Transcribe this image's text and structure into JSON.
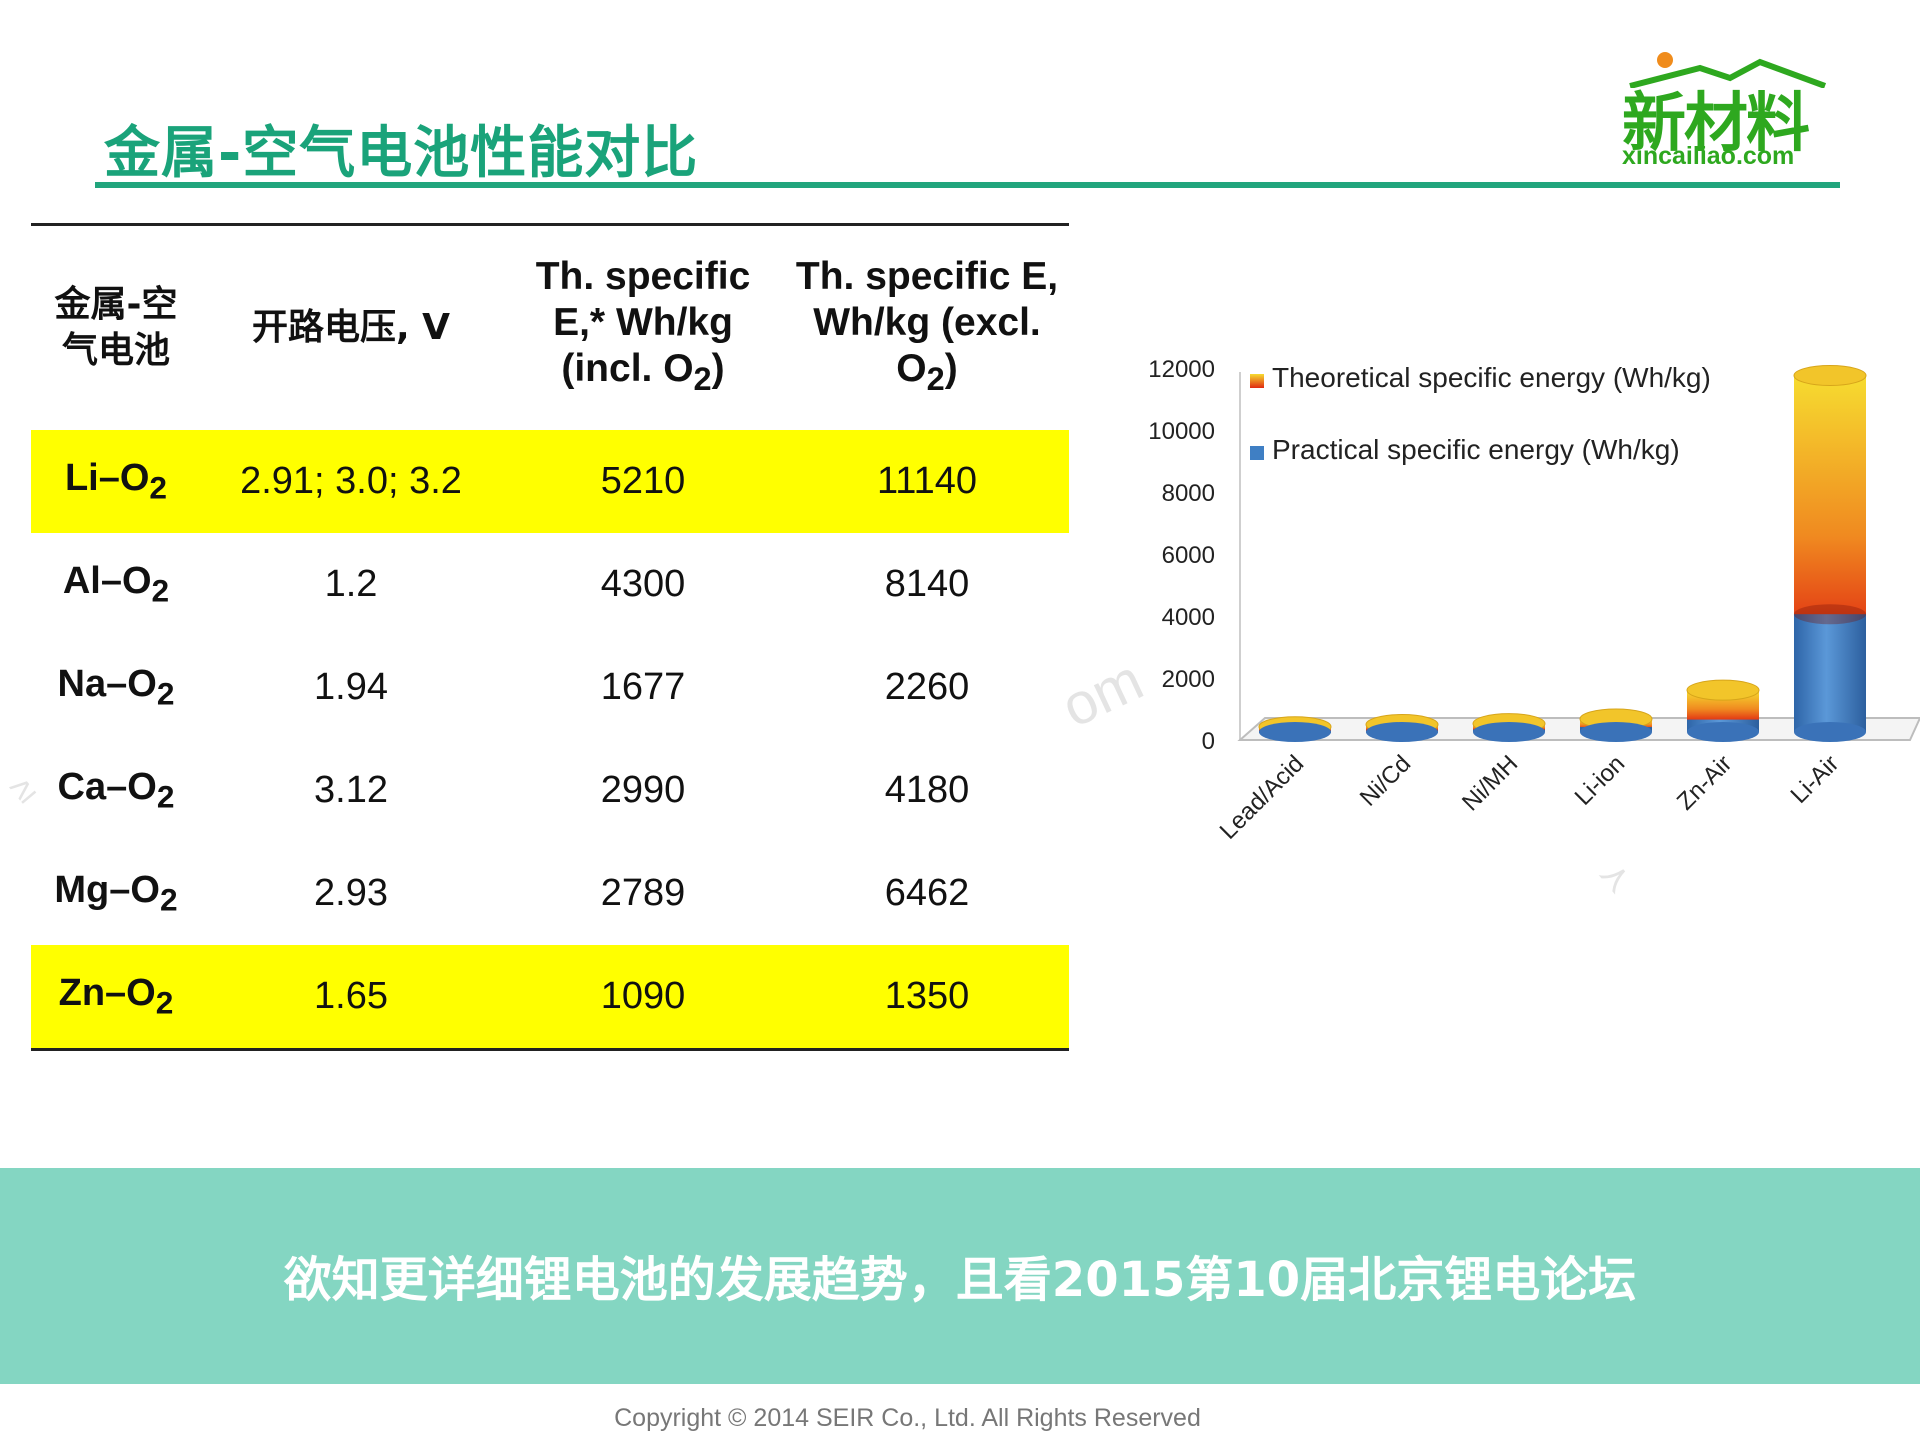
{
  "slide": {
    "title": "金属-空气电池性能对比",
    "logo_main": "新材料",
    "logo_sub": "xincailiao.com",
    "watermark_1": "om",
    "watermark_2": "≥",
    "watermark_3": "≻"
  },
  "table": {
    "headers": [
      {
        "line1": "金属-空",
        "line2": "气电池"
      },
      {
        "text": "开路电压, V"
      },
      {
        "line1": "Th. specific",
        "line2": "E,* Wh/kg",
        "line3_pre": "(incl. O",
        "line3_sub": "2",
        "line3_post": ")"
      },
      {
        "line1": "Th. specific E,",
        "line2": "Wh/kg (excl.",
        "line3_pre": "O",
        "line3_sub": "2",
        "line3_post": ")"
      }
    ],
    "rows": [
      {
        "metal": "Li–O",
        "sub": "2",
        "voltage": "2.91; 3.0; 3.2",
        "incl": "5210",
        "excl": "11140",
        "highlight": true
      },
      {
        "metal": "Al–O",
        "sub": "2",
        "voltage": "1.2",
        "incl": "4300",
        "excl": "8140",
        "highlight": false
      },
      {
        "metal": "Na–O",
        "sub": "2",
        "voltage": "1.94",
        "incl": "1677",
        "excl": "2260",
        "highlight": false
      },
      {
        "metal": "Ca–O",
        "sub": "2",
        "voltage": "3.12",
        "incl": "2990",
        "excl": "4180",
        "highlight": false
      },
      {
        "metal": "Mg–O",
        "sub": "2",
        "voltage": "2.93",
        "incl": "2789",
        "excl": "6462",
        "highlight": false
      },
      {
        "metal": "Zn–O",
        "sub": "2",
        "voltage": "1.65",
        "incl": "1090",
        "excl": "1350",
        "highlight": true
      }
    ]
  },
  "chart_data": {
    "type": "bar",
    "categories": [
      "Lead/Acid",
      "Ni/Cd",
      "Ni/MH",
      "Li-ion",
      "Zn-Air",
      "Li-Air"
    ],
    "series": [
      {
        "name": "Practical specific energy (Wh/kg)",
        "values": [
          35,
          40,
          80,
          160,
          400,
          3800
        ],
        "color": "#3f7fc4"
      },
      {
        "name": "Theoretical specific energy (Wh/kg)",
        "values": [
          170,
          240,
          270,
          420,
          1350,
          11500
        ],
        "color": "#e8b020"
      }
    ],
    "y_ticks": [
      "0",
      "2000",
      "4000",
      "6000",
      "8000",
      "10000",
      "12000"
    ],
    "ylim": [
      0,
      12000
    ],
    "legend_position": "top-left",
    "colors": {
      "gold": "#f5d230",
      "red": "#e53015",
      "darkred": "#7a0808",
      "blue": "#3f7fc4"
    }
  },
  "banner": {
    "text": "欲知更详细锂电池的发展趋势，且看2015第10届北京锂电论坛"
  },
  "footer": {
    "text": "Copyright © 2014  SEIR Co., Ltd. All Rights Reserved"
  }
}
